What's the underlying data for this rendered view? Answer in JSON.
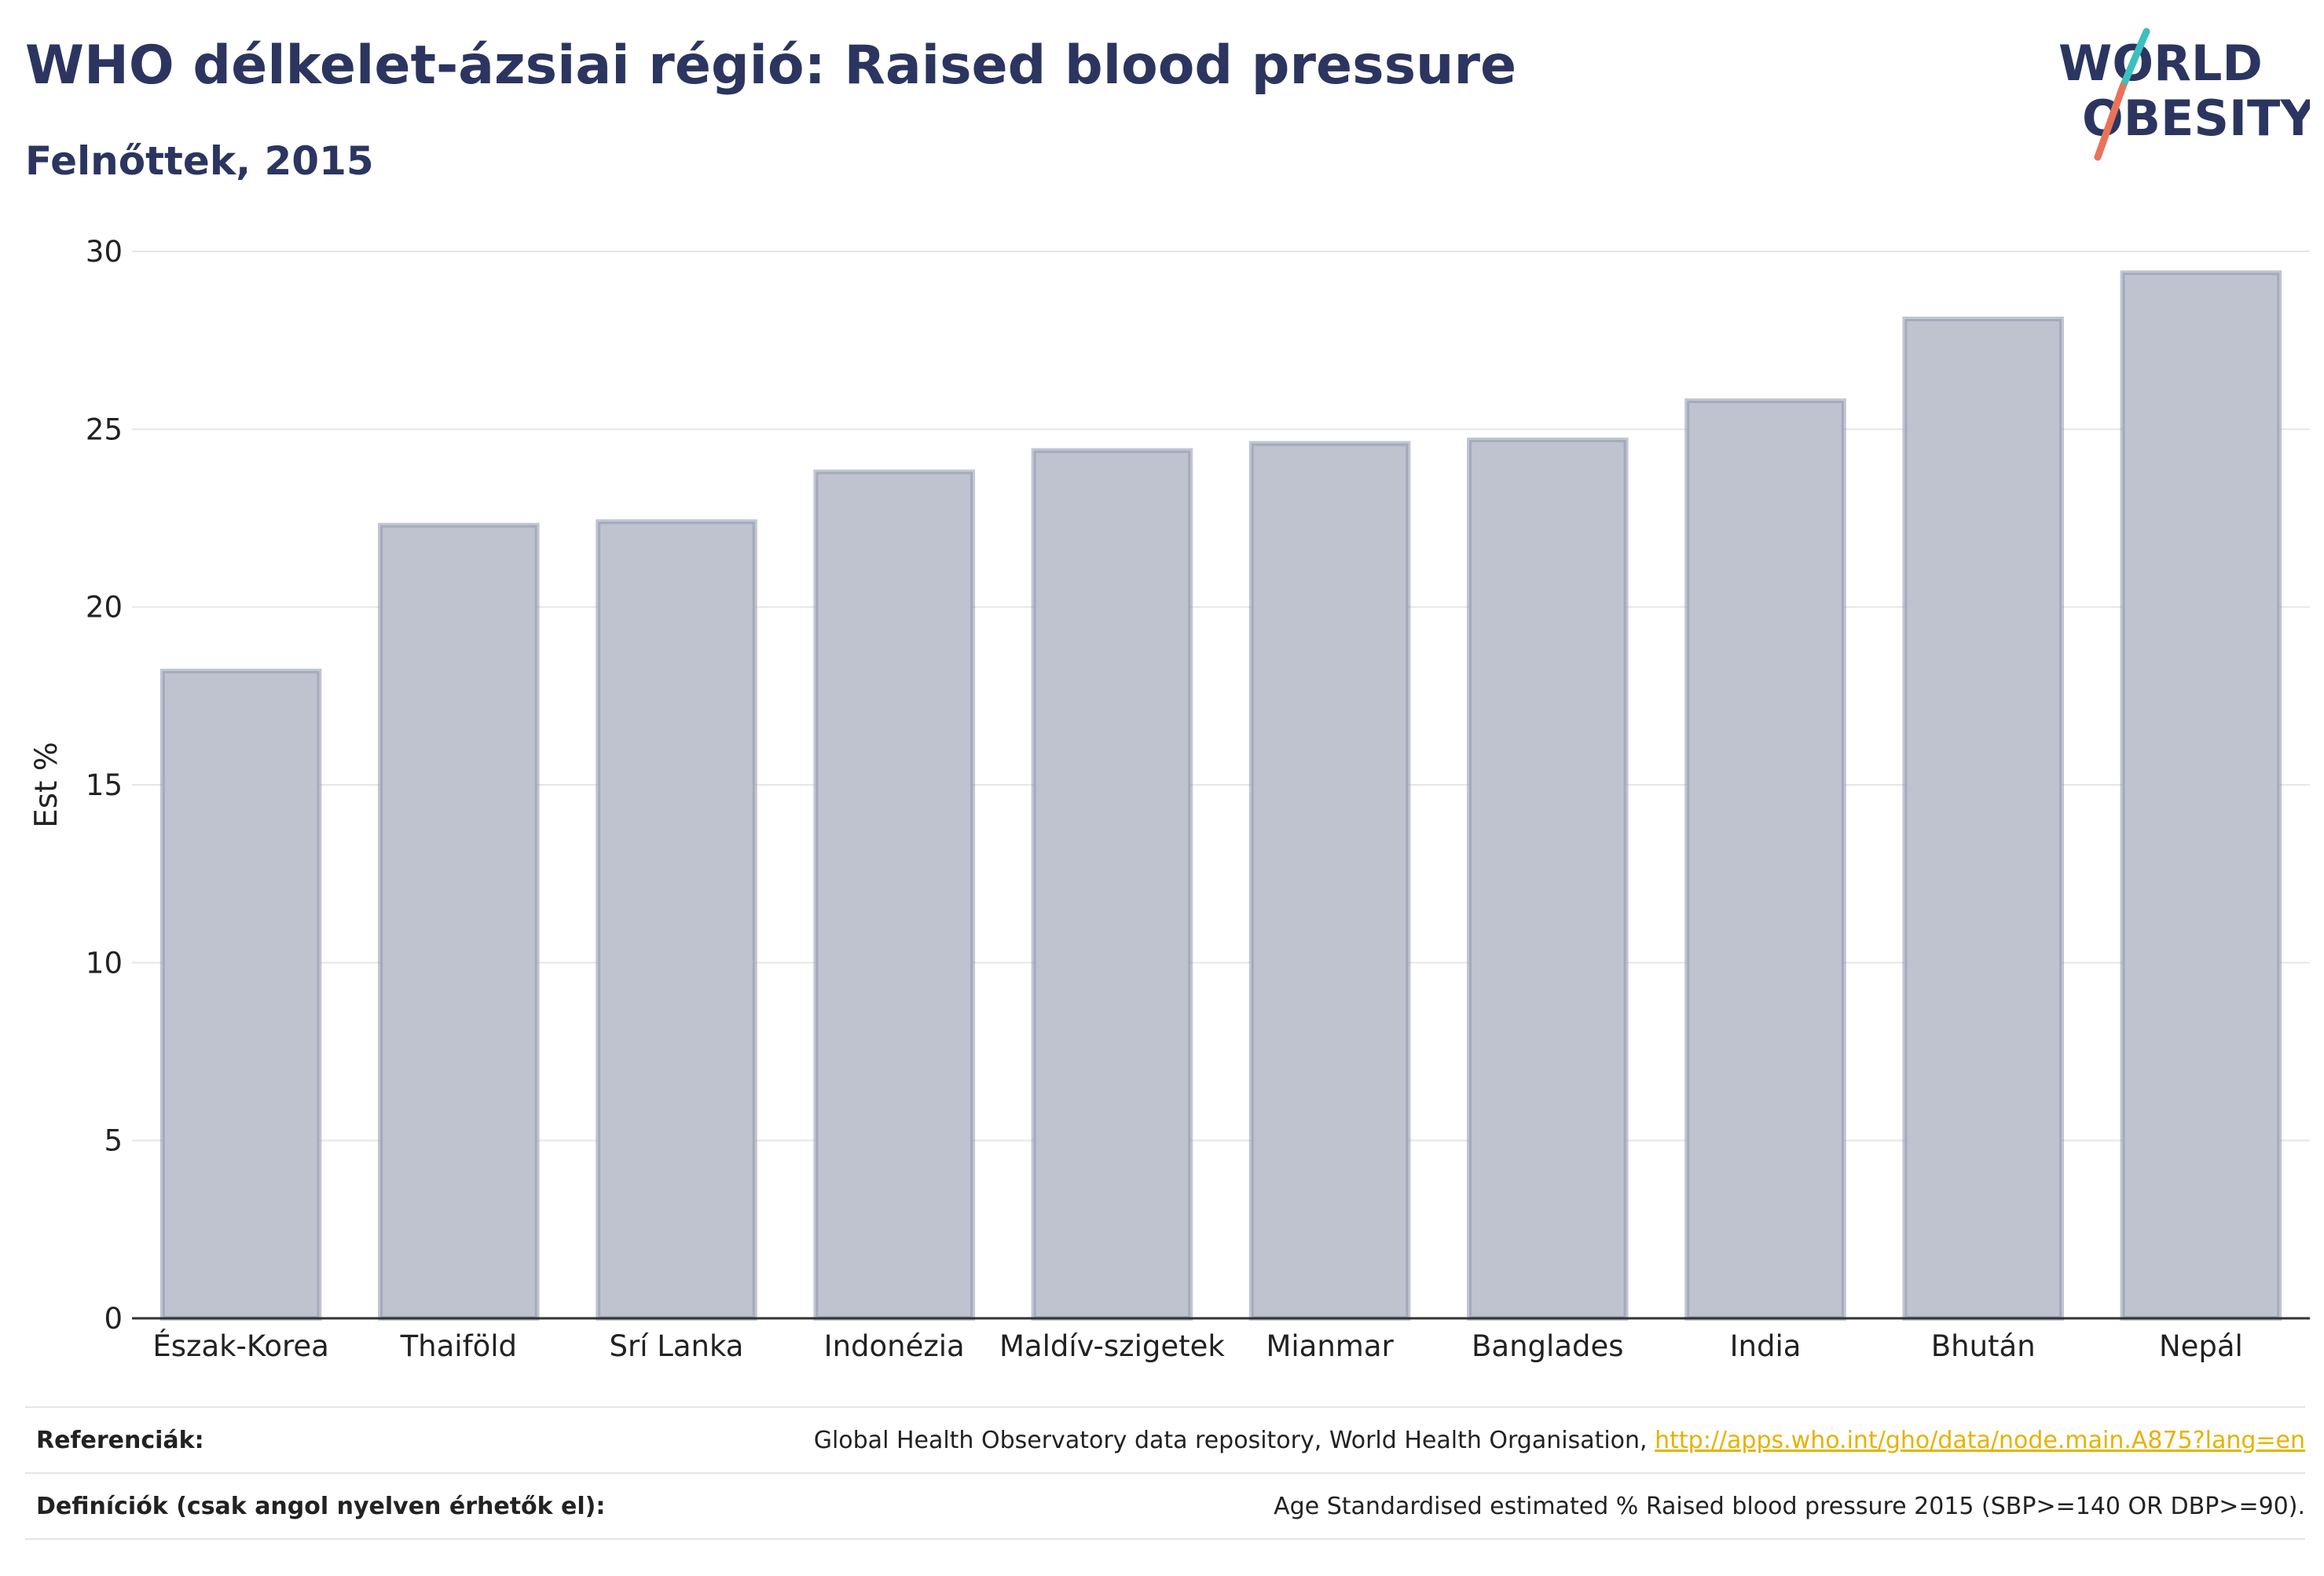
{
  "header": {
    "title": "WHO délkelet-ázsiai régió: Raised blood pressure",
    "subtitle": "Felnőttek, 2015"
  },
  "logo": {
    "line1": "WORLD",
    "line2": "OBESITY",
    "accent_teal": "#3bbfbf",
    "accent_coral": "#e8735a"
  },
  "chart_data": {
    "type": "bar",
    "categories": [
      "Észak-Korea",
      "Thaiföld",
      "Srí Lanka",
      "Indonézia",
      "Maldív-szigetek",
      "Mianmar",
      "Banglades",
      "India",
      "Bhután",
      "Nepál"
    ],
    "values": [
      18.2,
      22.3,
      22.4,
      23.8,
      24.4,
      24.6,
      24.7,
      25.8,
      28.1,
      29.4
    ],
    "ylabel": "Est %",
    "xlabel": "",
    "ylim": [
      0,
      30
    ],
    "yticks": [
      0,
      5,
      10,
      15,
      20,
      25,
      30
    ],
    "grid": true,
    "bar_fill": "#bfc3d0",
    "bar_stroke": "#8f96ad"
  },
  "footer": {
    "references_label": "Referenciák:",
    "references_text": "Global Health Observatory data repository, World Health Organisation,",
    "references_link": "http://apps.who.int/gho/data/node.main.A875?lang=en",
    "definitions_label": "Definíciók (csak angol nyelven érhetők el):",
    "definitions_text": "Age Standardised estimated % Raised blood pressure 2015 (SBP>=140 OR DBP>=90)."
  }
}
